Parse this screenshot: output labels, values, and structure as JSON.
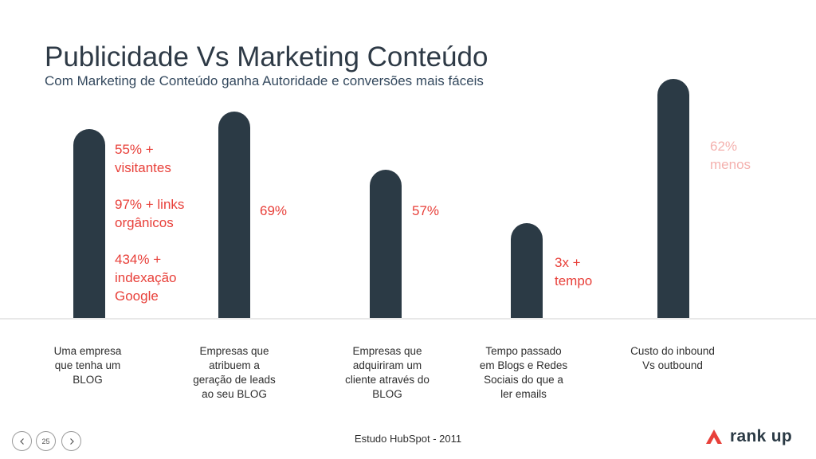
{
  "slide": {
    "title": "Publicidade Vs Marketing Conteúdo",
    "subtitle": "Com Marketing de Conteúdo ganha Autoridade e conversões mais fáceis",
    "source": "Estudo HubSpot - 2011",
    "page_number": "25"
  },
  "stats": {
    "blog": [
      [
        "55% +",
        "visitantes"
      ],
      [
        "97% + links",
        "orgânicos"
      ],
      [
        "434% +",
        "indexação",
        "Google"
      ]
    ],
    "leads": "69%",
    "client": "57%",
    "time": [
      "3x +",
      "tempo"
    ],
    "cost": [
      "62%",
      "menos"
    ]
  },
  "categories": [
    [
      "Uma empresa",
      "que tenha um",
      "BLOG"
    ],
    [
      "Empresas que",
      "atribuem a",
      "geração de leads",
      "ao seu BLOG"
    ],
    [
      "Empresas que",
      "adquiriram um",
      "cliente através do",
      "BLOG"
    ],
    [
      "Tempo passado",
      "em Blogs e Redes",
      "Sociais do que a",
      "ler emails"
    ],
    [
      "Custo do inbound",
      "Vs outbound"
    ]
  ],
  "logo": {
    "text": "rank up",
    "icon": "rankup-logo-icon"
  },
  "colors": {
    "bar": "#2b3a45",
    "accent": "#e8403a",
    "accent_faded": "#f4b1ae"
  }
}
